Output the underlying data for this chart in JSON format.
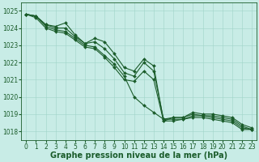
{
  "xlabel": "Graphe pression niveau de la mer (hPa)",
  "ylim": [
    1017.5,
    1025.5
  ],
  "xlim": [
    -0.5,
    23.5
  ],
  "yticks": [
    1018,
    1019,
    1020,
    1021,
    1022,
    1023,
    1024,
    1025
  ],
  "xticks": [
    0,
    1,
    2,
    3,
    4,
    5,
    6,
    7,
    8,
    9,
    10,
    11,
    12,
    13,
    14,
    15,
    16,
    17,
    18,
    19,
    20,
    21,
    22,
    23
  ],
  "background_color": "#c8ece6",
  "grid_color": "#a0d4c8",
  "line_color": "#1a5c2a",
  "lines": [
    [
      1024.8,
      1024.7,
      1024.2,
      1024.1,
      1024.3,
      1023.6,
      1023.1,
      1023.4,
      1023.2,
      1022.5,
      1021.7,
      1021.5,
      1022.2,
      1021.8,
      1018.6,
      1018.8,
      1018.8,
      1019.1,
      1019.0,
      1019.0,
      1018.9,
      1018.8,
      1018.4,
      1018.2
    ],
    [
      1024.8,
      1024.7,
      1024.2,
      1024.0,
      1024.0,
      1023.5,
      1023.1,
      1023.2,
      1022.8,
      1022.2,
      1021.4,
      1021.2,
      1022.0,
      1021.5,
      1018.7,
      1018.8,
      1018.8,
      1019.0,
      1018.9,
      1018.9,
      1018.8,
      1018.7,
      1018.3,
      1018.1
    ],
    [
      1024.8,
      1024.7,
      1024.1,
      1023.9,
      1023.8,
      1023.4,
      1023.0,
      1022.9,
      1022.4,
      1021.9,
      1021.2,
      1020.0,
      1019.5,
      1019.1,
      1018.7,
      1018.7,
      1018.7,
      1018.9,
      1018.9,
      1018.8,
      1018.7,
      1018.6,
      1018.2,
      1018.1
    ],
    [
      1024.8,
      1024.6,
      1024.0,
      1023.8,
      1023.7,
      1023.3,
      1022.9,
      1022.8,
      1022.3,
      1021.7,
      1021.0,
      1020.9,
      1021.5,
      1021.0,
      1018.6,
      1018.6,
      1018.7,
      1018.8,
      1018.8,
      1018.7,
      1018.6,
      1018.5,
      1018.1,
      1018.1
    ]
  ],
  "marker": "D",
  "markersize": 2.0,
  "linewidth": 0.8,
  "tick_fontsize": 5.5,
  "label_fontsize": 7.0
}
